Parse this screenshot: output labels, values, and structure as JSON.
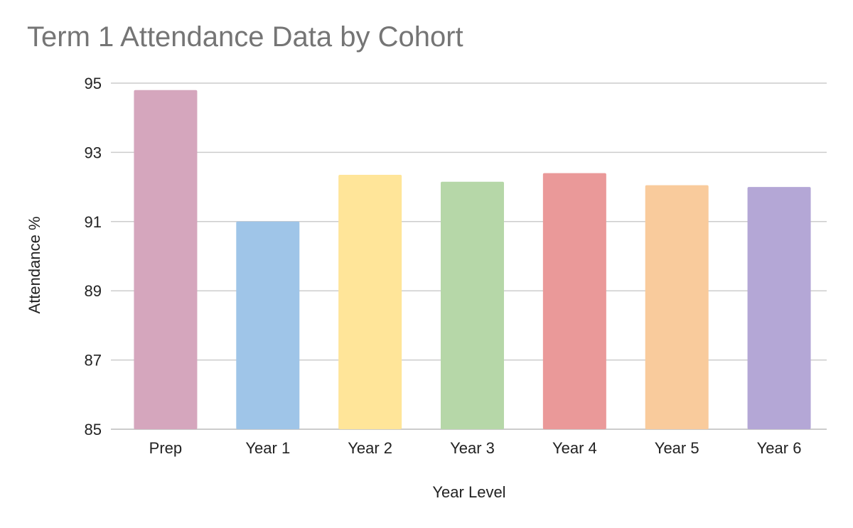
{
  "chart_data": {
    "type": "bar",
    "title": "Term 1 Attendance Data by Cohort",
    "xlabel": "Year Level",
    "ylabel": "Attendance %",
    "categories": [
      "Prep",
      "Year 1",
      "Year 2",
      "Year 3",
      "Year 4",
      "Year 5",
      "Year 6"
    ],
    "values": [
      94.8,
      91.0,
      92.35,
      92.15,
      92.4,
      92.05,
      92.0
    ],
    "colors": [
      "#d5a6bd",
      "#9fc5e8",
      "#ffe599",
      "#b6d7a8",
      "#ea9999",
      "#f9cb9c",
      "#b4a7d6"
    ],
    "ylim": [
      85,
      95
    ],
    "yticks": [
      85,
      87,
      89,
      91,
      93,
      95
    ],
    "grid": true,
    "legend": "none"
  }
}
